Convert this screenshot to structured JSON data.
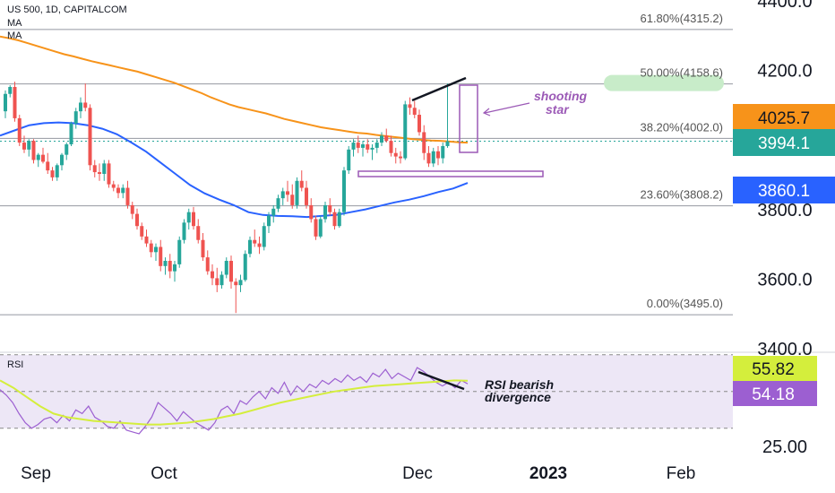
{
  "header": {
    "symbol_line": "US 500, 1D, CAPITALCOM",
    "ma1": "MA",
    "ma2": "MA",
    "rsi_label": "RSI"
  },
  "colors": {
    "up": "#26a69a",
    "down": "#ef5350",
    "ma_orange": "#f7931a",
    "ma_blue": "#2962ff",
    "rsi_line": "#9c5fd1",
    "rsi_ma": "#d4ee3c",
    "annotation": "#9b59b6",
    "rsi_band": "#ede7f6"
  },
  "chart_data": [
    {
      "type": "candlestick",
      "title": "US 500, 1D, CAPITALCOM",
      "x_ticks": [
        "Sep",
        "Oct",
        "Dec",
        "2023",
        "Feb"
      ],
      "y_ticks": [
        "4400.0",
        "4200.0",
        "3800.0",
        "3600.0",
        "3400.0"
      ],
      "ylim": [
        3380,
        4410
      ],
      "series": [
        {
          "kind": "ohlc",
          "values": [
            [
              4080,
              4140,
              4060,
              4130
            ],
            [
              4130,
              4155,
              4120,
              4150
            ],
            [
              4150,
              4165,
              4050,
              4060
            ],
            [
              4060,
              4070,
              3980,
              3990
            ],
            [
              3990,
              4010,
              3960,
              3970
            ],
            [
              3970,
              4000,
              3950,
              3995
            ],
            [
              3995,
              4000,
              3930,
              3940
            ],
            [
              3940,
              3960,
              3920,
              3955
            ],
            [
              3955,
              3975,
              3930,
              3935
            ],
            [
              3935,
              3960,
              3900,
              3910
            ],
            [
              3910,
              3920,
              3880,
              3890
            ],
            [
              3890,
              3930,
              3880,
              3925
            ],
            [
              3925,
              3960,
              3910,
              3955
            ],
            [
              3955,
              3990,
              3940,
              3985
            ],
            [
              3985,
              4050,
              3980,
              4045
            ],
            [
              4045,
              4090,
              4030,
              4080
            ],
            [
              4080,
              4120,
              4060,
              4105
            ],
            [
              4105,
              4160,
              4080,
              4090
            ],
            [
              4090,
              4100,
              3910,
              3925
            ],
            [
              3925,
              3940,
              3890,
              3905
            ],
            [
              3905,
              3930,
              3880,
              3900
            ],
            [
              3900,
              3940,
              3880,
              3930
            ],
            [
              3930,
              3940,
              3860,
              3870
            ],
            [
              3870,
              3880,
              3850,
              3860
            ],
            [
              3860,
              3870,
              3830,
              3845
            ],
            [
              3845,
              3870,
              3830,
              3860
            ],
            [
              3860,
              3880,
              3800,
              3810
            ],
            [
              3810,
              3820,
              3770,
              3785
            ],
            [
              3785,
              3800,
              3740,
              3750
            ],
            [
              3750,
              3760,
              3710,
              3720
            ],
            [
              3720,
              3740,
              3690,
              3700
            ],
            [
              3700,
              3710,
              3660,
              3675
            ],
            [
              3675,
              3700,
              3650,
              3690
            ],
            [
              3690,
              3710,
              3620,
              3635
            ],
            [
              3635,
              3660,
              3610,
              3650
            ],
            [
              3650,
              3670,
              3600,
              3620
            ],
            [
              3620,
              3650,
              3590,
              3640
            ],
            [
              3640,
              3720,
              3630,
              3710
            ],
            [
              3710,
              3770,
              3700,
              3760
            ],
            [
              3760,
              3800,
              3740,
              3790
            ],
            [
              3790,
              3805,
              3740,
              3750
            ],
            [
              3750,
              3770,
              3700,
              3710
            ],
            [
              3710,
              3730,
              3650,
              3660
            ],
            [
              3660,
              3680,
              3610,
              3620
            ],
            [
              3620,
              3640,
              3580,
              3600
            ],
            [
              3600,
              3630,
              3560,
              3580
            ],
            [
              3580,
              3620,
              3570,
              3610
            ],
            [
              3610,
              3660,
              3600,
              3650
            ],
            [
              3650,
              3665,
              3570,
              3590
            ],
            [
              3590,
              3600,
              3500,
              3580
            ],
            [
              3580,
              3610,
              3560,
              3595
            ],
            [
              3595,
              3680,
              3590,
              3670
            ],
            [
              3670,
              3720,
              3660,
              3710
            ],
            [
              3710,
              3740,
              3690,
              3700
            ],
            [
              3700,
              3720,
              3670,
              3690
            ],
            [
              3690,
              3760,
              3680,
              3750
            ],
            [
              3750,
              3790,
              3730,
              3780
            ],
            [
              3780,
              3810,
              3760,
              3800
            ],
            [
              3800,
              3840,
              3790,
              3830
            ],
            [
              3830,
              3860,
              3810,
              3850
            ],
            [
              3850,
              3880,
              3820,
              3840
            ],
            [
              3840,
              3870,
              3800,
              3810
            ],
            [
              3810,
              3890,
              3800,
              3880
            ],
            [
              3880,
              3910,
              3850,
              3860
            ],
            [
              3860,
              3880,
              3800,
              3810
            ],
            [
              3810,
              3830,
              3760,
              3770
            ],
            [
              3770,
              3780,
              3710,
              3720
            ],
            [
              3720,
              3780,
              3715,
              3770
            ],
            [
              3770,
              3820,
              3760,
              3810
            ],
            [
              3810,
              3830,
              3780,
              3790
            ],
            [
              3790,
              3800,
              3740,
              3750
            ],
            [
              3750,
              3800,
              3745,
              3790
            ],
            [
              3790,
              3920,
              3780,
              3910
            ],
            [
              3910,
              3980,
              3900,
              3970
            ],
            [
              3970,
              4000,
              3950,
              3990
            ],
            [
              3990,
              4010,
              3960,
              3975
            ],
            [
              3975,
              3995,
              3950,
              3985
            ],
            [
              3985,
              4000,
              3960,
              3970
            ],
            [
              3970,
              3985,
              3940,
              3975
            ],
            [
              3975,
              4000,
              3960,
              3990
            ],
            [
              3990,
              4020,
              3980,
              4010
            ],
            [
              4010,
              4030,
              3990,
              3995
            ],
            [
              3995,
              4010,
              3950,
              3960
            ],
            [
              3960,
              3975,
              3930,
              3950
            ],
            [
              3950,
              3965,
              3930,
              3945
            ],
            [
              3945,
              4110,
              3940,
              4100
            ],
            [
              4100,
              4120,
              4070,
              4090
            ],
            [
              4090,
              4110,
              4060,
              4070
            ],
            [
              4070,
              4085,
              4010,
              4020
            ],
            [
              4020,
              4040,
              3940,
              3960
            ],
            [
              3960,
              3980,
              3920,
              3930
            ],
            [
              3930,
              3975,
              3920,
              3965
            ],
            [
              3965,
              3980,
              3925,
              3945
            ],
            [
              3945,
              3990,
              3930,
              3980
            ],
            [
              3980,
              4160,
              3975,
              3994
            ]
          ]
        },
        {
          "name": "",
          "kind": "ma200",
          "values": [
            4295,
            4290,
            4284,
            4276,
            4268,
            4260,
            4252,
            4244,
            4238,
            4231,
            4224,
            4218,
            4212,
            4206,
            4200,
            4194,
            4186,
            4178,
            4170,
            4162,
            4152,
            4142,
            4132,
            4120,
            4110,
            4100,
            4092,
            4086,
            4080,
            4074,
            4066,
            4058,
            4052,
            4046,
            4040,
            4034,
            4030,
            4026,
            4022,
            4018,
            4016,
            4012,
            4009,
            4006,
            4003,
            4000,
            3998,
            3996,
            3995,
            3993,
            3991,
            3990
          ]
        },
        {
          "name": "",
          "kind": "ma50",
          "values": [
            4010,
            4025,
            4040,
            4046,
            4048,
            4046,
            4040,
            4030,
            4014,
            3990,
            3964,
            3932,
            3900,
            3868,
            3844,
            3826,
            3810,
            3790,
            3782,
            3779,
            3778,
            3776,
            3779,
            3782,
            3790,
            3798,
            3808,
            3818,
            3826,
            3836,
            3848,
            3858,
            3874
          ]
        }
      ]
    },
    {
      "type": "line",
      "title": "RSI",
      "y_ticks": [
        "25.00"
      ],
      "series": [
        {
          "name": "RSI",
          "values": [
            51,
            48,
            44,
            38,
            33,
            30,
            32,
            35,
            36,
            33,
            37,
            34,
            40,
            38,
            42,
            36,
            34,
            31,
            30,
            34,
            29,
            28,
            27,
            31,
            36,
            44,
            41,
            38,
            34,
            39,
            36,
            33,
            31,
            29,
            33,
            40,
            42,
            38,
            45,
            43,
            47,
            50,
            46,
            52,
            49,
            55,
            48,
            53,
            50,
            54,
            52,
            56,
            54,
            57,
            55,
            59,
            56,
            58,
            55,
            60,
            58,
            62,
            57,
            60,
            58,
            56,
            63,
            61,
            58,
            55,
            53,
            55,
            52,
            56,
            54.18
          ]
        },
        {
          "name": "",
          "kind": "rsi_ma",
          "values": [
            56,
            52,
            47,
            42,
            38,
            36,
            35,
            34,
            33.5,
            33,
            32.5,
            32,
            32,
            32.5,
            33,
            34,
            35,
            36.5,
            38,
            40,
            42,
            44,
            45.5,
            47,
            48.5,
            50,
            51,
            52,
            53,
            53.5,
            54,
            54.5,
            55,
            55.5,
            56,
            55.82
          ]
        }
      ]
    }
  ],
  "axis": {
    "y_labels": [
      {
        "text": "4400.0",
        "value": 4400
      },
      {
        "text": "4200.0",
        "value": 4200
      },
      {
        "text": "3800.0",
        "value": 3800
      },
      {
        "text": "3600.0",
        "value": 3600
      },
      {
        "text": "3400.0",
        "value": 3400
      }
    ],
    "x_labels": [
      "Sep",
      "Oct",
      "Dec",
      "2023",
      "Feb"
    ],
    "rsi_tick": "25.00"
  },
  "fib_levels": [
    {
      "label": "61.80%(4315.2)",
      "value": 4315.2
    },
    {
      "label": "50.00%(4158.6)",
      "value": 4158.6
    },
    {
      "label": "38.20%(4002.0)",
      "value": 4002.0
    },
    {
      "label": "23.60%(3808.2)",
      "value": 3808.2
    },
    {
      "label": "0.00%(3495.0)",
      "value": 3495.0
    }
  ],
  "price_badges": [
    {
      "text": "4025.7",
      "color": "#f7931a"
    },
    {
      "text": "3994.1",
      "color": "#26a69a"
    },
    {
      "text": "3860.1",
      "color": "#2962ff"
    }
  ],
  "rsi_badges": [
    {
      "text": "55.82",
      "color": "#d4ee3c"
    },
    {
      "text": "54.18",
      "color": "#9c5fd1"
    }
  ],
  "annotations": {
    "shooting_star_line1": "shooting",
    "shooting_star_line2": "star",
    "rsi_div_line1": "RSI bearish",
    "rsi_div_line2": "divergence"
  }
}
